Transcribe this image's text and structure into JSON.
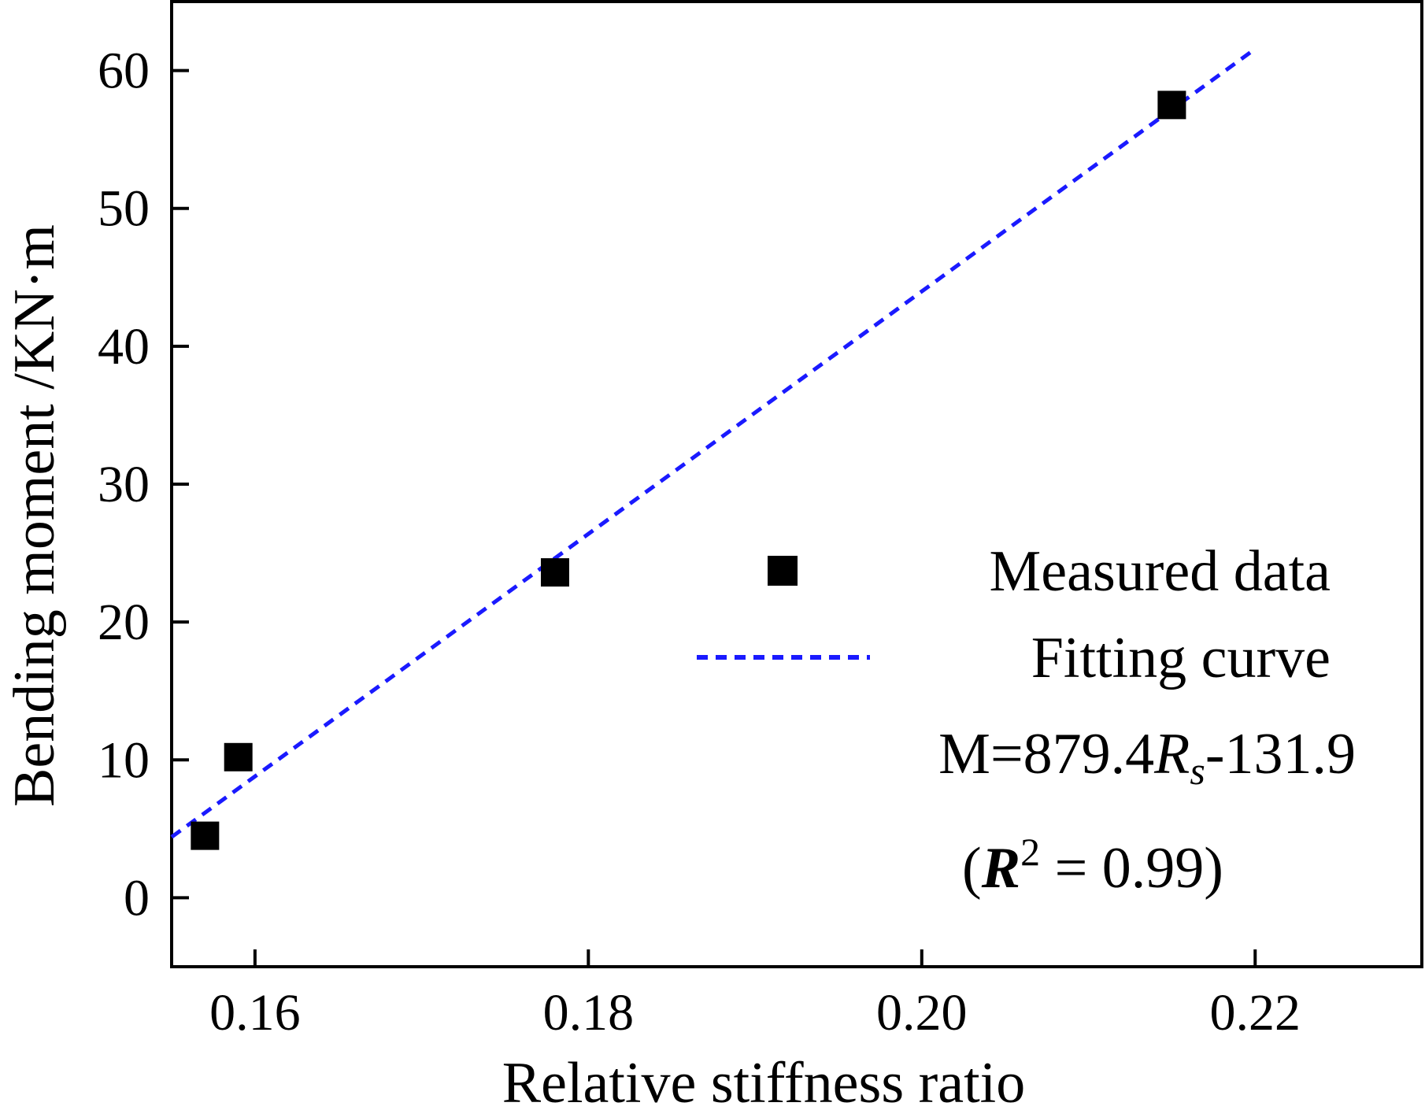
{
  "chart_data": {
    "type": "scatter",
    "xlabel": "Relative stiffness ratio",
    "ylabel": "Bending moment /KN·m",
    "xlim": [
      0.155,
      0.23
    ],
    "ylim": [
      -5,
      65
    ],
    "xticks": [
      0.16,
      0.18,
      0.2,
      0.22
    ],
    "xtick_labels": [
      "0.16",
      "0.18",
      "0.20",
      "0.22"
    ],
    "yticks": [
      0,
      10,
      20,
      30,
      40,
      50,
      60
    ],
    "ytick_labels": [
      "0",
      "10",
      "20",
      "30",
      "40",
      "50",
      "60"
    ],
    "grid": false,
    "legend_position": "lower-right",
    "series": [
      {
        "name": "Measured data",
        "marker": "square",
        "color": "#000000",
        "points": [
          {
            "x": 0.157,
            "y": 4.5
          },
          {
            "x": 0.159,
            "y": 10.2
          },
          {
            "x": 0.178,
            "y": 23.6
          },
          {
            "x": 0.215,
            "y": 57.5
          }
        ]
      },
      {
        "name": "Fitting curve",
        "style": "dashed",
        "color": "#1a1aff",
        "fit": {
          "slope": 879.4,
          "intercept": -131.9,
          "x_range": [
            0.155,
            0.22
          ]
        }
      }
    ],
    "annotation": {
      "equation_prefix": "M=879.4",
      "equation_var": "R",
      "equation_sub": "s",
      "equation_suffix": "-131.9",
      "r2_open": "(",
      "r2_var": "R",
      "r2_sup": "2",
      "r2_rest": " = 0.99)"
    }
  }
}
